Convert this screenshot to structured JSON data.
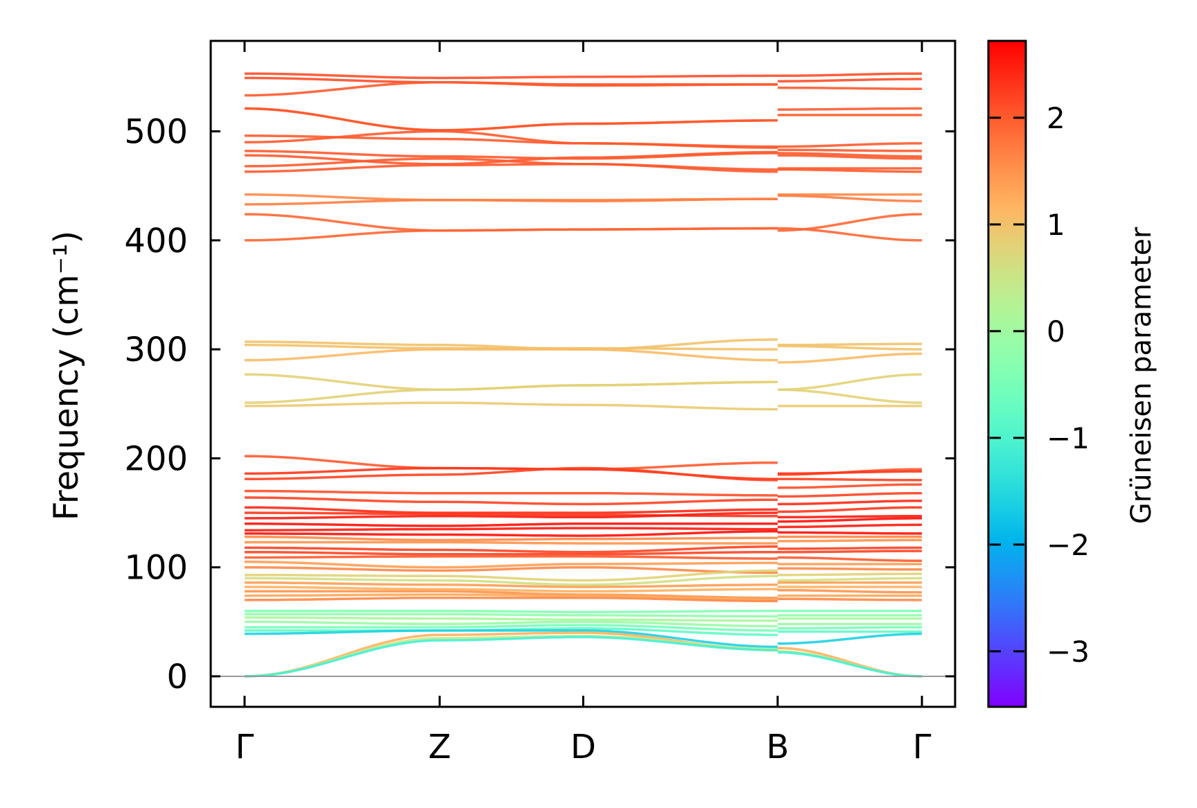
{
  "chart_data": {
    "type": "line",
    "title": "",
    "xlabel": "",
    "ylabel": "Frequency (cm⁻¹)",
    "ylim": [
      -28,
      583
    ],
    "yticks": [
      0,
      100,
      200,
      300,
      400,
      500
    ],
    "xticks": [
      {
        "label": "Γ",
        "pos": 0
      },
      {
        "label": "Z",
        "pos": 0.288
      },
      {
        "label": "D",
        "pos": 0.5
      },
      {
        "label": "B",
        "pos": 0.787
      },
      {
        "label": "Γ",
        "pos": 1
      }
    ],
    "xlim": [
      -0.05,
      1.049
    ],
    "segment_points": [
      "Γ",
      "Z",
      "D",
      "B",
      "B",
      "Γ"
    ],
    "colorbar": {
      "label": "Grüneisen parameter",
      "range": [
        -3.52,
        2.72
      ],
      "ticks": [
        2,
        1,
        0,
        -1,
        -2,
        -3
      ],
      "tick_labels": [
        "2",
        "1",
        "0",
        "−1",
        "−2",
        "−3"
      ],
      "colormap": "rainbow"
    },
    "bands": [
      {
        "f": [
          553,
          549,
          550,
          551,
          551,
          553
        ],
        "g": 2.1
      },
      {
        "f": [
          549,
          545,
          543,
          543,
          546,
          548
        ],
        "g": 2.1
      },
      {
        "f": [
          533,
          545,
          542,
          543,
          540,
          539
        ],
        "g": 2.0
      },
      {
        "f": [
          521,
          501,
          507,
          510,
          520,
          521
        ],
        "g": 2.0
      },
      {
        "f": [
          521,
          501,
          507,
          510,
          515,
          515
        ],
        "g": 2.0
      },
      {
        "f": [
          496,
          493,
          489,
          486,
          486,
          489
        ],
        "g": 2.0
      },
      {
        "f": [
          490,
          500,
          489,
          485,
          483,
          482
        ],
        "g": 2.0
      },
      {
        "f": [
          482,
          477,
          475,
          480,
          480,
          477
        ],
        "g": 2.0
      },
      {
        "f": [
          478,
          470,
          476,
          481,
          478,
          475
        ],
        "g": 2.0
      },
      {
        "f": [
          468,
          475,
          470,
          465,
          466,
          466
        ],
        "g": 2.0
      },
      {
        "f": [
          463,
          469,
          470,
          463,
          465,
          463
        ],
        "g": 2.0
      },
      {
        "f": [
          442,
          437,
          437,
          438,
          442,
          442
        ],
        "g": 1.6
      },
      {
        "f": [
          433,
          437,
          436,
          438,
          441,
          436
        ],
        "g": 1.7
      },
      {
        "f": [
          424,
          409,
          410,
          411,
          409,
          424
        ],
        "g": 1.9
      },
      {
        "f": [
          400,
          409,
          410,
          411,
          411,
          400
        ],
        "g": 1.9
      },
      {
        "f": [
          307,
          304,
          300,
          309,
          304,
          305
        ],
        "g": 1.0
      },
      {
        "f": [
          304,
          301,
          301,
          300,
          303,
          300
        ],
        "g": 1.0
      },
      {
        "f": [
          290,
          300,
          300,
          290,
          288,
          296
        ],
        "g": 1.1
      },
      {
        "f": [
          277,
          263,
          267,
          270,
          263,
          277
        ],
        "g": 0.8
      },
      {
        "f": [
          251,
          263,
          267,
          270,
          263,
          251
        ],
        "g": 0.8
      },
      {
        "f": [
          248,
          251,
          249,
          245,
          248,
          248
        ],
        "g": 0.9
      },
      {
        "f": [
          202,
          191,
          190,
          196,
          185,
          190
        ],
        "g": 2.0
      },
      {
        "f": [
          186,
          191,
          190,
          181,
          186,
          188
        ],
        "g": 2.3
      },
      {
        "f": [
          181,
          185,
          191,
          180,
          181,
          180
        ],
        "g": 2.2
      },
      {
        "f": [
          170,
          168,
          168,
          166,
          173,
          176
        ],
        "g": 2.1
      },
      {
        "f": [
          164,
          160,
          158,
          162,
          165,
          168
        ],
        "g": 2.2
      },
      {
        "f": [
          155,
          150,
          150,
          153,
          158,
          161
        ],
        "g": 2.4
      },
      {
        "f": [
          150,
          149,
          148,
          147,
          151,
          155
        ],
        "g": 2.3
      },
      {
        "f": [
          145,
          147,
          146,
          150,
          146,
          147
        ],
        "g": 2.5
      },
      {
        "f": [
          140,
          138,
          140,
          140,
          142,
          145
        ],
        "g": 2.6
      },
      {
        "f": [
          134,
          135,
          136,
          135,
          137,
          139
        ],
        "g": 2.5
      },
      {
        "f": [
          131,
          130,
          129,
          133,
          132,
          131
        ],
        "g": 2.6
      },
      {
        "f": [
          128,
          125,
          126,
          127,
          128,
          128
        ],
        "g": 1.6
      },
      {
        "f": [
          123,
          123,
          122,
          122,
          124,
          125
        ],
        "g": 1.5
      },
      {
        "f": [
          118,
          116,
          114,
          119,
          117,
          118
        ],
        "g": 2.2
      },
      {
        "f": [
          114,
          112,
          112,
          114,
          114,
          115
        ],
        "g": 2.2
      },
      {
        "f": [
          109,
          110,
          110,
          108,
          109,
          106
        ],
        "g": 2.0
      },
      {
        "f": [
          105,
          100,
          103,
          104,
          103,
          103
        ],
        "g": 1.4
      },
      {
        "f": [
          100,
          97,
          100,
          95,
          99,
          98
        ],
        "g": 1.6
      },
      {
        "f": [
          93,
          92,
          88,
          97,
          93,
          94
        ],
        "g": 0.8
      },
      {
        "f": [
          90,
          88,
          84,
          92,
          88,
          90
        ],
        "g": 0.6
      },
      {
        "f": [
          86,
          84,
          82,
          84,
          86,
          86
        ],
        "g": 1.4
      },
      {
        "f": [
          82,
          80,
          78,
          80,
          82,
          82
        ],
        "g": 1.2
      },
      {
        "f": [
          78,
          78,
          75,
          72,
          79,
          77
        ],
        "g": 1.5
      },
      {
        "f": [
          74,
          75,
          74,
          70,
          74,
          74
        ],
        "g": 1.3
      },
      {
        "f": [
          70,
          72,
          72,
          69,
          71,
          70
        ],
        "g": 1.6
      },
      {
        "f": [
          60,
          60,
          59,
          60,
          60,
          60
        ],
        "g": -0.4
      },
      {
        "f": [
          57,
          57,
          56,
          55,
          56,
          56
        ],
        "g": -0.2
      },
      {
        "f": [
          54,
          53,
          52,
          51,
          53,
          53
        ],
        "g": 0.1
      },
      {
        "f": [
          50,
          48,
          50,
          46,
          48,
          48
        ],
        "g": -0.1
      },
      {
        "f": [
          45,
          45,
          47,
          42,
          44,
          45
        ],
        "g": -0.5
      },
      {
        "f": [
          42,
          42,
          44,
          38,
          41,
          41
        ],
        "g": -0.8
      },
      {
        "f": [
          39,
          42,
          42,
          27,
          30,
          39
        ],
        "g": -1.6
      },
      {
        "f": [
          0,
          38,
          40,
          24,
          26,
          0
        ],
        "g": 1.2
      },
      {
        "f": [
          0,
          35,
          37,
          25,
          23,
          0
        ],
        "g": 0.4
      },
      {
        "f": [
          0,
          33,
          36,
          24,
          22,
          0
        ],
        "g": -1.1
      }
    ]
  }
}
